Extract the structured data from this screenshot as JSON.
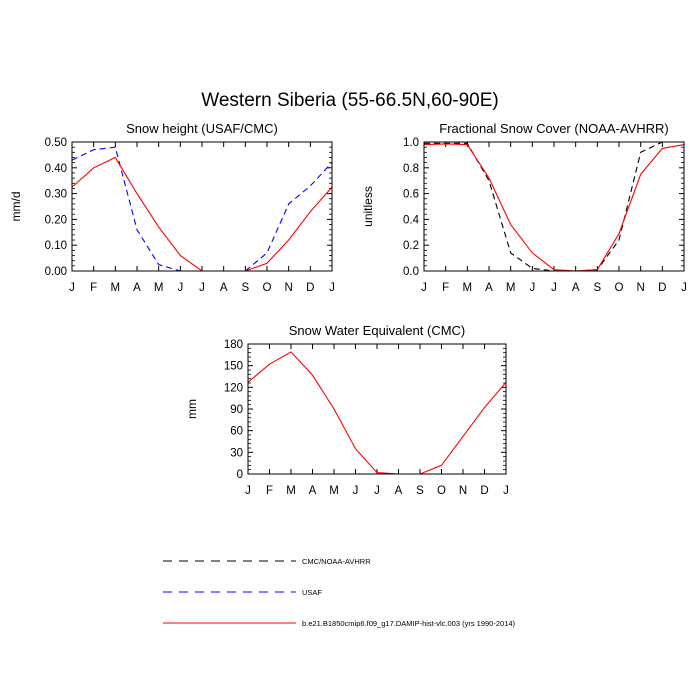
{
  "title": "Western Siberia (55-66.5N,60-90E)",
  "months": [
    "J",
    "F",
    "M",
    "A",
    "M",
    "J",
    "J",
    "A",
    "S",
    "O",
    "N",
    "D",
    "J"
  ],
  "legend": [
    {
      "label": "CMC/NOAA-AVHRR",
      "color": "#000000",
      "dash": "dashed"
    },
    {
      "label": "USAF",
      "color": "#0000ff",
      "dash": "dashed"
    },
    {
      "label": "b.e21.B1850cmip6.f09_g17.DAMIP-hist-vlc.003 (yrs 1990-2014)",
      "color": "#ff0000",
      "dash": "solid"
    }
  ],
  "chart_data": [
    {
      "type": "line",
      "title": "Snow height (USAF/CMC)",
      "ylabel": "mm/d",
      "ylim": [
        0,
        0.5
      ],
      "yticks": [
        "0.00",
        "0.10",
        "0.20",
        "0.30",
        "0.40",
        "0.50"
      ],
      "categories": [
        "J",
        "F",
        "M",
        "A",
        "M",
        "J",
        "J",
        "A",
        "S",
        "O",
        "N",
        "D",
        "J"
      ],
      "series": [
        {
          "name": "CMC/NOAA-AVHRR",
          "color": "#000000",
          "dash": "dashed",
          "values": [
            0,
            0,
            0,
            0,
            0,
            0,
            0,
            0,
            0,
            0,
            0,
            0,
            0
          ]
        },
        {
          "name": "USAF",
          "color": "#0000ff",
          "dash": "dashed",
          "values": [
            0.43,
            0.47,
            0.48,
            0.16,
            0.025,
            0.0,
            0.0,
            0.0,
            0.0,
            0.07,
            0.26,
            0.33,
            0.42
          ]
        },
        {
          "name": "b.e21.B1850cmip6.f09_g17.DAMIP-hist-vlc.003 (yrs 1990-2014)",
          "color": "#ff0000",
          "dash": "solid",
          "values": [
            0.325,
            0.4,
            0.44,
            0.3,
            0.17,
            0.06,
            0.0,
            0.0,
            0.0,
            0.03,
            0.12,
            0.23,
            0.325
          ]
        }
      ]
    },
    {
      "type": "line",
      "title": "Fractional Snow Cover (NOAA-AVHRR)",
      "ylabel": "unitless",
      "ylim": [
        0,
        1.0
      ],
      "yticks": [
        "0.0",
        "0.2",
        "0.4",
        "0.6",
        "0.8",
        "1.0"
      ],
      "categories": [
        "J",
        "F",
        "M",
        "A",
        "M",
        "J",
        "J",
        "A",
        "S",
        "O",
        "N",
        "D",
        "J"
      ],
      "series": [
        {
          "name": "CMC/NOAA-AVHRR",
          "color": "#000000",
          "dash": "dashed",
          "values": [
            0.99,
            0.99,
            0.99,
            0.7,
            0.14,
            0.02,
            0.0,
            0.0,
            0.01,
            0.24,
            0.92,
            1.0,
            1.0
          ]
        },
        {
          "name": "b.e21.B1850cmip6.f09_g17.DAMIP-hist-vlc.003 (yrs 1990-2014)",
          "color": "#ff0000",
          "dash": "solid",
          "values": [
            0.98,
            0.985,
            0.98,
            0.72,
            0.36,
            0.14,
            0.01,
            0.0,
            0.01,
            0.29,
            0.75,
            0.95,
            0.98
          ]
        }
      ]
    },
    {
      "type": "line",
      "title": "Snow Water Equivalent (CMC)",
      "ylabel": "mm",
      "ylim": [
        0,
        180
      ],
      "yticks": [
        "0",
        "30",
        "60",
        "90",
        "120",
        "150",
        "180"
      ],
      "categories": [
        "J",
        "F",
        "M",
        "A",
        "M",
        "J",
        "J",
        "A",
        "S",
        "O",
        "N",
        "D",
        "J"
      ],
      "series": [
        {
          "name": "CMC/NOAA-AVHRR",
          "color": "#000000",
          "dash": "dashed",
          "values": [
            0,
            0,
            0,
            0,
            0,
            0,
            0,
            0,
            0,
            0,
            0,
            0,
            0
          ]
        },
        {
          "name": "b.e21.B1850cmip6.f09_g17.DAMIP-hist-vlc.003 (yrs 1990-2014)",
          "color": "#ff0000",
          "dash": "solid",
          "values": [
            127,
            152,
            169,
            137,
            90,
            35,
            2,
            0,
            0,
            12,
            52,
            92,
            127
          ]
        }
      ]
    }
  ]
}
